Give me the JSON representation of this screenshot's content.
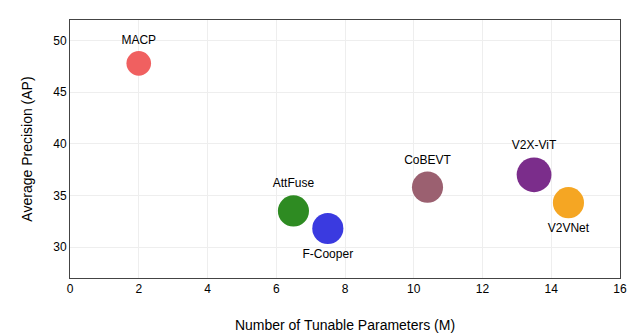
{
  "chart_data": {
    "type": "scatter",
    "x": [
      2.0,
      6.5,
      7.5,
      10.4,
      13.5,
      14.5
    ],
    "values": [
      47.8,
      33.5,
      31.8,
      35.8,
      37.0,
      34.3
    ],
    "labels": [
      "MACP",
      "AttFuse",
      "F-Cooper",
      "CoBEVT",
      "V2X-ViT",
      "V2VNet"
    ],
    "sizes": [
      500,
      800,
      800,
      800,
      1000,
      800
    ],
    "colors": [
      "#F06060",
      "#2E8B22",
      "#3A3AE0",
      "#9B6070",
      "#7B2D8B",
      "#F5A623"
    ],
    "xlabel": "Number of Tunable Parameters (M)",
    "ylabel": "Average Precision (AP)",
    "xlim": [
      0,
      16
    ],
    "ylim": [
      27,
      52
    ],
    "xticks": [
      0,
      2,
      4,
      6,
      8,
      10,
      12,
      14,
      16
    ],
    "yticks": [
      30,
      35,
      40,
      45,
      50
    ],
    "grid": true
  }
}
